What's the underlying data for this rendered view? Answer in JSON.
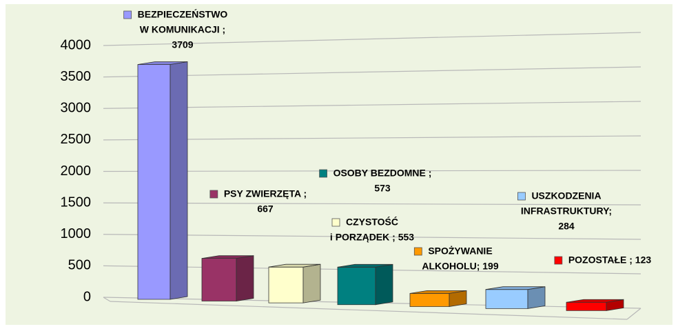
{
  "chart_data": {
    "type": "bar3d",
    "values": [
      3709,
      667,
      553,
      573,
      199,
      284,
      123
    ],
    "value_labels": [
      [
        "BEZPIECZEŃSTWO",
        "W KOMUNIKACJI ;",
        "3709"
      ],
      [
        "PSY ZWIERZĘTA ;",
        "667"
      ],
      [
        "CZYSTOŚĆ",
        "i PORZĄDEK ; 553"
      ],
      [
        "OSOBY BEZDOMNE ;",
        "573"
      ],
      [
        "SPOŻYWANIE",
        "ALKOHOLU; 199"
      ],
      [
        "USZKODZENIA",
        "INFRASTRUKTURY;",
        "284"
      ],
      [
        "POZOSTAŁE ; 123"
      ]
    ],
    "colors": [
      "#9999ff",
      "#993366",
      "#ffffcc",
      "#008080",
      "#ff9900",
      "#99ccff",
      "#ff0000"
    ],
    "ylim": [
      0,
      4000
    ],
    "yticks": [
      0,
      500,
      1000,
      1500,
      2000,
      2500,
      3000,
      3500,
      4000
    ],
    "grid": true
  }
}
